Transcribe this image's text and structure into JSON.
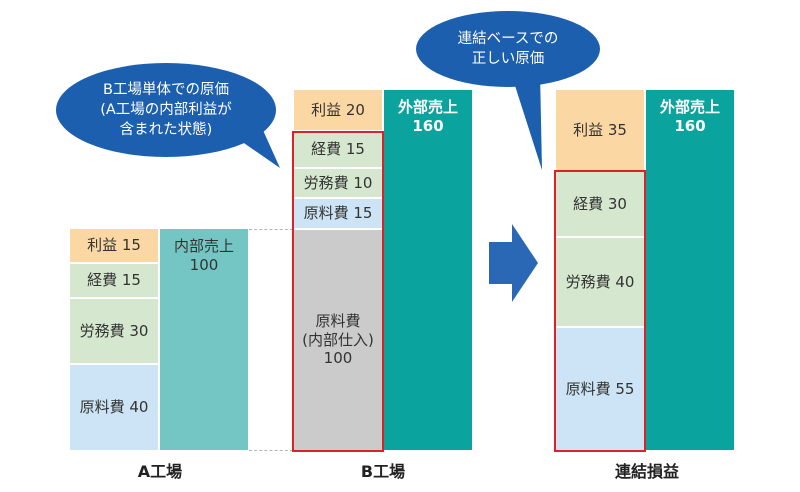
{
  "bubbles": {
    "left": "B工場単体での原価\n(A工場の内部利益が\n含まれた状態)",
    "right": "連結ベースでの\n正しい原価"
  },
  "factory_a": {
    "label": "A工場",
    "profit": "利益 15",
    "expenses": "経費 15",
    "labor": "労務費 30",
    "materials": "原料費 40",
    "internal_sales": "内部売上\n100"
  },
  "factory_b": {
    "label": "B工場",
    "profit": "利益 20",
    "expenses": "経費 15",
    "labor": "労務費 10",
    "materials": "原料費 15",
    "internal_purchase": "原料費\n(内部仕入)\n100",
    "external_sales": "外部売上\n160"
  },
  "consolidated": {
    "label": "連結損益",
    "profit": "利益 35",
    "expenses": "経費 30",
    "labor": "労務費 40",
    "materials": "原料費 55",
    "external_sales": "外部売上\n160"
  },
  "colors": {
    "bubble": "#1c5fae",
    "arrow": "#2a68b5",
    "highlight": "#d8232a"
  }
}
